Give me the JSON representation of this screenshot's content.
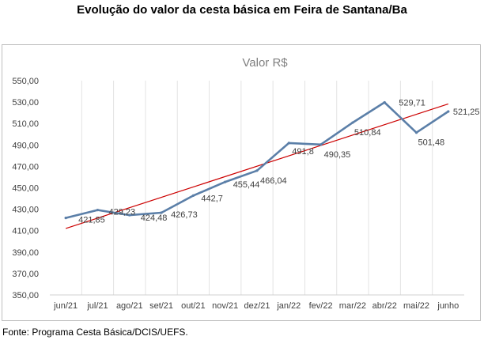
{
  "page": {
    "title": "Evolução do valor da cesta básica em Feira de Santana/Ba",
    "source": "Fonte: Programa Cesta Básica/DCIS/UEFS."
  },
  "chart_data": {
    "type": "line",
    "title": "Valor R$",
    "categories": [
      "jun/21",
      "jul/21",
      "ago/21",
      "set/21",
      "out/21",
      "nov/21",
      "dez/21",
      "jan/22",
      "fev/22",
      "mar/22",
      "abr/22",
      "mai/22",
      "junho"
    ],
    "series": [
      {
        "values": [
          421.85,
          429.23,
          424.48,
          426.73,
          442.7,
          455.44,
          466.04,
          491.8,
          490.35,
          510.84,
          529.71,
          501.48,
          521.25
        ],
        "labels": [
          "421,85",
          "429,23",
          "424,48",
          "426,73",
          "442,7",
          "455,44",
          "466,04",
          "491,8",
          "490,35",
          "510,84",
          "529,71",
          "501,48",
          "521,25"
        ],
        "color": "#5b7fa8"
      }
    ],
    "trendline": {
      "type": "linear",
      "color": "#cc0000"
    },
    "ylim": [
      350,
      550
    ],
    "yticks": [
      "350,00",
      "370,00",
      "390,00",
      "410,00",
      "430,00",
      "450,00",
      "470,00",
      "490,00",
      "510,00",
      "530,00",
      "550,00"
    ],
    "grid": "vertical",
    "legend": "none"
  }
}
